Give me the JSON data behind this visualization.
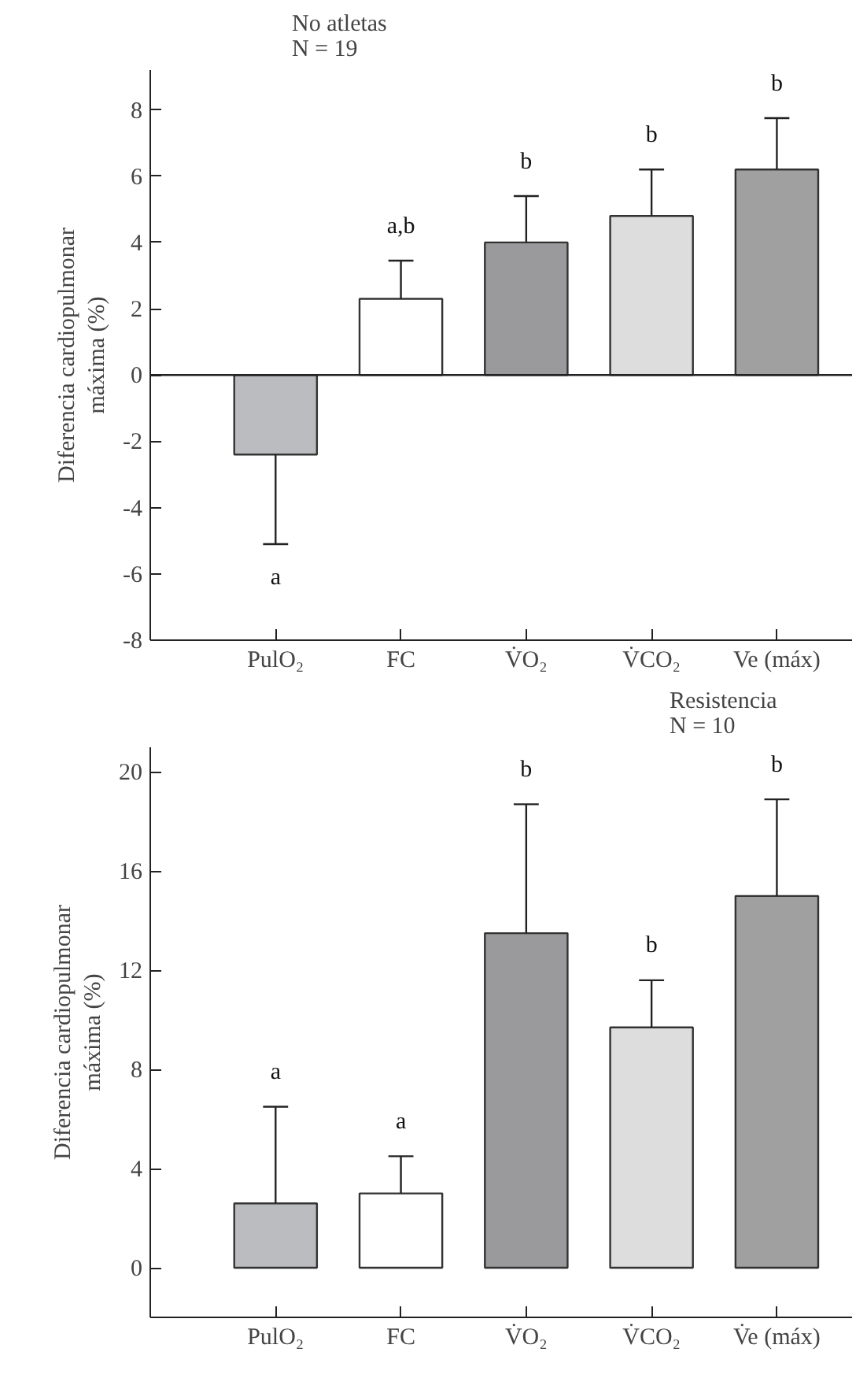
{
  "chart_data": [
    {
      "type": "bar",
      "title": "No atletas\nN = 19",
      "ylabel": "Diferencia cardiopulmonar\nmáxima (%)",
      "categories": [
        "PulO₂",
        "FC",
        "V̇O₂",
        "V̇CO₂",
        "Ve (máx)"
      ],
      "values": [
        -2.4,
        2.3,
        4.0,
        4.8,
        6.2
      ],
      "colors": [
        "#bbbcc0",
        "#ffffff",
        "#9a9a9c",
        "#dddddd",
        "#a0a0a0"
      ],
      "errors": [
        [
          -5.1,
          -2.4
        ],
        [
          2.3,
          3.45
        ],
        [
          4.0,
          5.4
        ],
        [
          4.8,
          6.2
        ],
        [
          6.2,
          7.75
        ]
      ],
      "ylim": [
        -8,
        9.2
      ],
      "yticks": [
        -8,
        -6,
        -4,
        -2,
        0,
        2,
        4,
        6,
        8
      ],
      "ref_lines": [
        {
          "axis": "y",
          "value": 0
        }
      ],
      "annotations": [
        "a",
        "a,b",
        "b",
        "b",
        "b"
      ]
    },
    {
      "type": "bar",
      "title": "Resistencia\nN = 10",
      "ylabel": "Diferencia cardiopulmonar\nmáxima (%)",
      "categories": [
        "PulO₂",
        "FC",
        "V̇O₂",
        "V̇CO₂",
        "V̇e (máx)"
      ],
      "values": [
        2.6,
        3.0,
        13.5,
        9.7,
        15.0
      ],
      "colors": [
        "#bbbcc0",
        "#ffffff",
        "#9a9a9c",
        "#dddddd",
        "#a0a0a0"
      ],
      "errors": [
        [
          2.6,
          6.5
        ],
        [
          3.0,
          4.5
        ],
        [
          13.5,
          18.7
        ],
        [
          9.7,
          11.6
        ],
        [
          15.0,
          18.9
        ]
      ],
      "ylim": [
        -2,
        21
      ],
      "yticks": [
        0,
        4,
        8,
        12,
        16,
        20
      ],
      "annotations": [
        "a",
        "a",
        "b",
        "b",
        "b"
      ]
    }
  ]
}
